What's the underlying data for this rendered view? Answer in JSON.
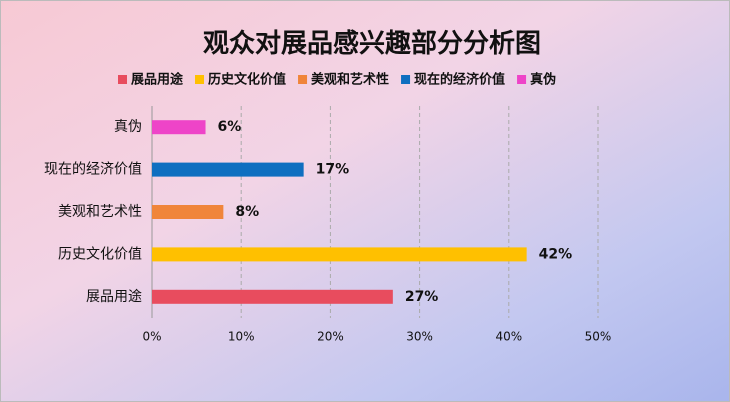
{
  "chart_data": {
    "type": "bar",
    "orientation": "horizontal",
    "title": "观众对展品感兴趣部分分析图",
    "categories": [
      "展品用途",
      "历史文化价值",
      "美观和艺术性",
      "现在的经济价值",
      "真伪"
    ],
    "values": [
      27,
      42,
      8,
      17,
      6
    ],
    "value_labels": [
      "27%",
      "42%",
      "8%",
      "17%",
      "6%"
    ],
    "colors": [
      "#e84c5e",
      "#ffc000",
      "#f0853a",
      "#0f6fc0",
      "#ee44c8"
    ],
    "xlim": [
      0,
      50
    ],
    "xticks": [
      {
        "value": 0,
        "label": "0%"
      },
      {
        "value": 10,
        "label": "10%"
      },
      {
        "value": 20,
        "label": "20%"
      },
      {
        "value": 30,
        "label": "30%"
      },
      {
        "value": 40,
        "label": "40%"
      },
      {
        "value": 50,
        "label": "50%"
      }
    ],
    "grid": true
  }
}
